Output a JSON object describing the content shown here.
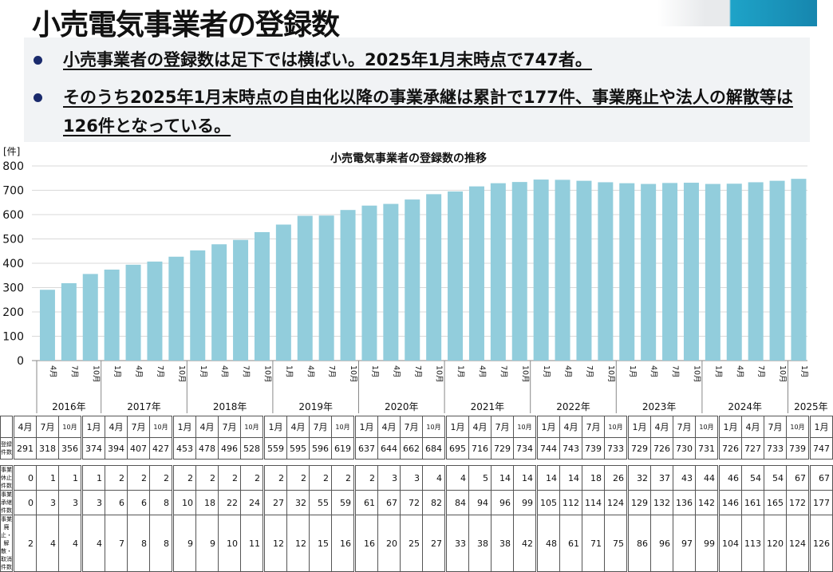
{
  "title": "小売電気事業者の登録数",
  "bullets": [
    "小売事業者の登録数は足下では横ばい。2025年1月末時点で747者。",
    "そのうち2025年1月末時点の自由化以降の事業承継は累計で177件、事業廃止や法人の解散等は126件となっている。"
  ],
  "colors": {
    "bar": "#92cddc",
    "accent": "#1a2a6c"
  },
  "chart_data": {
    "type": "bar",
    "title": "小売電気事業者の登録数の推移",
    "ylabel": "[件]",
    "ylim": [
      0,
      800
    ],
    "yticks": [
      0,
      100,
      200,
      300,
      400,
      500,
      600,
      700,
      800
    ],
    "years": [
      {
        "label": "2016年",
        "count": 3
      },
      {
        "label": "2017年",
        "count": 4
      },
      {
        "label": "2018年",
        "count": 4
      },
      {
        "label": "2019年",
        "count": 4
      },
      {
        "label": "2020年",
        "count": 4
      },
      {
        "label": "2021年",
        "count": 4
      },
      {
        "label": "2022年",
        "count": 4
      },
      {
        "label": "2023年",
        "count": 4
      },
      {
        "label": "2024年",
        "count": 4
      },
      {
        "label": "2025年",
        "count": 1
      }
    ],
    "categories": [
      "4月",
      "7月",
      "10月",
      "1月",
      "4月",
      "7月",
      "10月",
      "1月",
      "4月",
      "7月",
      "10月",
      "1月",
      "4月",
      "7月",
      "10月",
      "1月",
      "4月",
      "7月",
      "10月",
      "1月",
      "4月",
      "7月",
      "10月",
      "1月",
      "4月",
      "7月",
      "10月",
      "1月",
      "4月",
      "7月",
      "10月",
      "1月",
      "4月",
      "7月",
      "10月",
      "1月"
    ],
    "values": [
      291,
      318,
      356,
      374,
      394,
      407,
      427,
      453,
      478,
      496,
      528,
      559,
      595,
      596,
      619,
      637,
      644,
      662,
      684,
      695,
      716,
      729,
      734,
      744,
      743,
      739,
      733,
      729,
      726,
      730,
      731,
      726,
      727,
      733,
      739,
      747
    ]
  },
  "table": {
    "rows": [
      {
        "label": "登録件数",
        "values": [
          291,
          318,
          356,
          374,
          394,
          407,
          427,
          453,
          478,
          496,
          528,
          559,
          595,
          596,
          619,
          637,
          644,
          662,
          684,
          695,
          716,
          729,
          734,
          744,
          743,
          739,
          733,
          729,
          726,
          730,
          731,
          726,
          727,
          733,
          739,
          747
        ]
      },
      {
        "label": "事業休止件数",
        "values": [
          0,
          1,
          1,
          1,
          2,
          2,
          2,
          2,
          2,
          2,
          2,
          2,
          2,
          2,
          2,
          2,
          3,
          3,
          4,
          4,
          5,
          14,
          14,
          14,
          14,
          18,
          26,
          32,
          37,
          43,
          44,
          46,
          54,
          54,
          67,
          67
        ]
      },
      {
        "label": "事業承継件数",
        "values": [
          0,
          3,
          3,
          3,
          6,
          6,
          8,
          10,
          18,
          22,
          24,
          27,
          32,
          55,
          59,
          61,
          67,
          72,
          82,
          84,
          94,
          96,
          99,
          105,
          112,
          114,
          124,
          129,
          132,
          136,
          142,
          146,
          161,
          165,
          172,
          177
        ]
      },
      {
        "label": "事業廃止・解散・取消件数",
        "values": [
          2,
          4,
          4,
          4,
          7,
          8,
          8,
          9,
          9,
          10,
          11,
          12,
          12,
          15,
          16,
          16,
          20,
          25,
          27,
          33,
          38,
          38,
          42,
          48,
          61,
          71,
          75,
          86,
          96,
          97,
          99,
          104,
          113,
          120,
          124,
          126
        ]
      }
    ]
  }
}
